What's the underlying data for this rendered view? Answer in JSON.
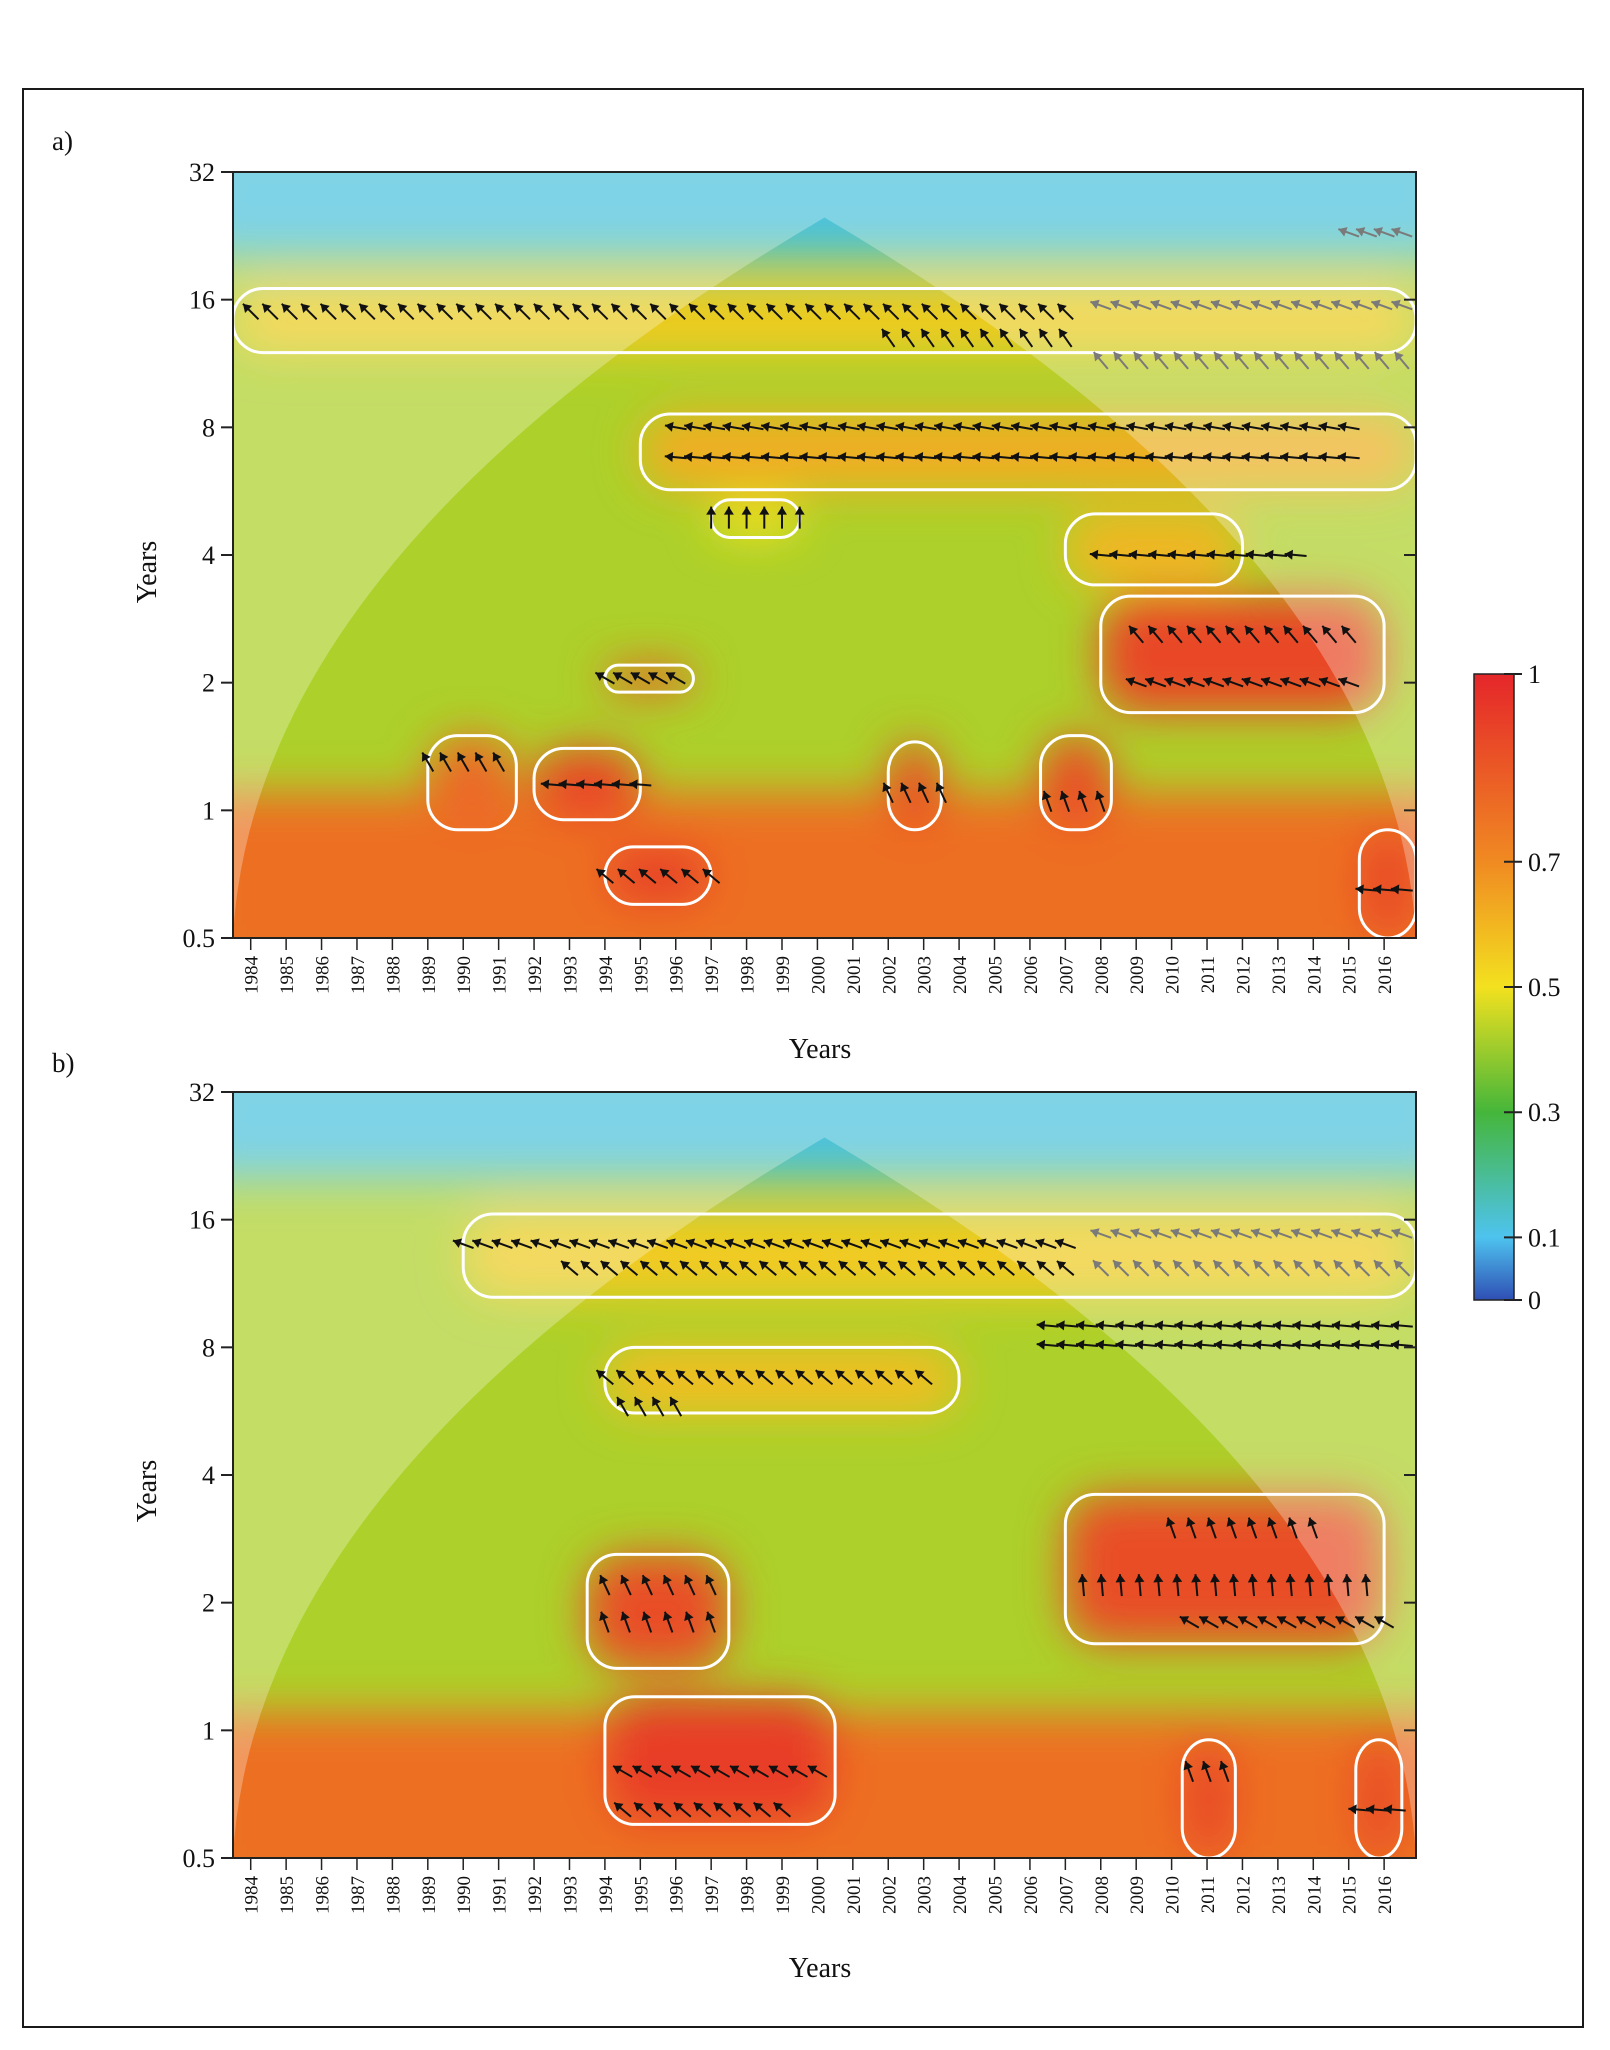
{
  "colors": {
    "scale_stops": [
      "#2f4fb4",
      "#4ec3ef",
      "#45b63a",
      "#f3e11f",
      "#f08a22",
      "#e5262a"
    ],
    "contour": "#ffffff",
    "arrow": "#111111",
    "arrow_outside_coi": "#7a7a7a"
  },
  "chart_data": [
    {
      "type": "heatmap",
      "panel_label": "a)",
      "title": "",
      "xlabel": "Years",
      "ylabel": "Years",
      "y_scale": "log2",
      "ylim": [
        0.5,
        32
      ],
      "y_ticks": [
        0.5,
        1,
        2,
        4,
        8,
        16,
        32
      ],
      "y_tick_labels": [
        "0.5",
        "1",
        "2",
        "4",
        "8",
        "16",
        "32"
      ],
      "xlim": [
        1983.5,
        2016.9
      ],
      "x_ticks": [
        1984,
        1985,
        1986,
        1987,
        1988,
        1989,
        1990,
        1991,
        1992,
        1993,
        1994,
        1995,
        1996,
        1997,
        1998,
        1999,
        2000,
        2001,
        2002,
        2003,
        2004,
        2005,
        2006,
        2007,
        2008,
        2009,
        2010,
        2011,
        2012,
        2013,
        2014,
        2015,
        2016
      ],
      "x_tick_labels": [
        "1984",
        "1985",
        "1986",
        "1987",
        "1988",
        "1989",
        "1990",
        "1991",
        "1992",
        "1993",
        "1994",
        "1995",
        "1996",
        "1997",
        "1998",
        "1999",
        "2000",
        "2001",
        "2002",
        "2003",
        "2004",
        "2005",
        "2006",
        "2007",
        "2008",
        "2009",
        "2010",
        "2011",
        "2012",
        "2013",
        "2014",
        "2015",
        "2016"
      ],
      "cone_of_influence": true,
      "significant_regions": [
        {
          "x": [
            1983.5,
            2016.9
          ],
          "period": [
            12,
            17
          ],
          "coherence": 0.55
        },
        {
          "x": [
            1995,
            2016.9
          ],
          "period": [
            5.7,
            8.6
          ],
          "coherence": 0.62
        },
        {
          "x": [
            2008,
            2016
          ],
          "period": [
            1.7,
            3.2
          ],
          "coherence": 0.9
        },
        {
          "x": [
            2007,
            2012
          ],
          "period": [
            3.4,
            5
          ],
          "coherence": 0.6
        },
        {
          "x": [
            1997,
            1999.5
          ],
          "period": [
            4.4,
            5.4
          ],
          "coherence": 0.5
        },
        {
          "x": [
            1994,
            1996.5
          ],
          "period": [
            1.9,
            2.2
          ],
          "coherence": 0.85
        },
        {
          "x": [
            1992,
            1995
          ],
          "period": [
            0.95,
            1.4
          ],
          "coherence": 0.9
        },
        {
          "x": [
            1989,
            1991.5
          ],
          "period": [
            0.9,
            1.5
          ],
          "coherence": 0.8
        },
        {
          "x": [
            1994,
            1997
          ],
          "period": [
            0.6,
            0.82
          ],
          "coherence": 0.92
        },
        {
          "x": [
            2002,
            2003.5
          ],
          "period": [
            0.9,
            1.45
          ],
          "coherence": 0.88
        },
        {
          "x": [
            2006.3,
            2008.3
          ],
          "period": [
            0.9,
            1.5
          ],
          "coherence": 0.88
        },
        {
          "x": [
            2015.3,
            2016.9
          ],
          "period": [
            0.5,
            0.9
          ],
          "coherence": 0.9
        }
      ],
      "phase_arrows": [
        {
          "x_range": [
            1984,
            2007
          ],
          "period": 15,
          "angle": 135
        },
        {
          "x_range": [
            2002,
            2007
          ],
          "period": 13,
          "angle": 125
        },
        {
          "x_range": [
            2008,
            2016.5
          ],
          "period": 15.5,
          "angle": 160
        },
        {
          "x_range": [
            2008,
            2016.5
          ],
          "period": 11.5,
          "angle": 130
        },
        {
          "x_range": [
            2015,
            2016.5
          ],
          "period": 23,
          "angle": 160
        },
        {
          "x_range": [
            1996,
            2015
          ],
          "period": 8,
          "angle": 170
        },
        {
          "x_range": [
            1996,
            2015
          ],
          "period": 6.8,
          "angle": 175
        },
        {
          "x_range": [
            1997,
            1999.5
          ],
          "period": 4.9,
          "angle": 90
        },
        {
          "x_range": [
            2008,
            2013.5
          ],
          "period": 4,
          "angle": 175
        },
        {
          "x_range": [
            2009,
            2015
          ],
          "period": 2.6,
          "angle": 130
        },
        {
          "x_range": [
            2009,
            2015
          ],
          "period": 2,
          "angle": 160
        },
        {
          "x_range": [
            1994,
            1996
          ],
          "period": 2.05,
          "angle": 150
        },
        {
          "x_range": [
            1992.5,
            1995
          ],
          "period": 1.15,
          "angle": 175
        },
        {
          "x_range": [
            1989,
            1991
          ],
          "period": 1.3,
          "angle": 120
        },
        {
          "x_range": [
            1994,
            1997
          ],
          "period": 0.7,
          "angle": 140
        },
        {
          "x_range": [
            2002,
            2003.5
          ],
          "period": 1.1,
          "angle": 115
        },
        {
          "x_range": [
            2006.5,
            2008
          ],
          "period": 1.05,
          "angle": 110
        },
        {
          "x_range": [
            2015.5,
            2016.5
          ],
          "period": 0.65,
          "angle": 175
        }
      ]
    },
    {
      "type": "heatmap",
      "panel_label": "b)",
      "title": "",
      "xlabel": "Years",
      "ylabel": "Years",
      "y_scale": "log2",
      "ylim": [
        0.5,
        32
      ],
      "y_ticks": [
        0.5,
        1,
        2,
        4,
        8,
        16,
        32
      ],
      "y_tick_labels": [
        "0.5",
        "1",
        "2",
        "4",
        "8",
        "16",
        "32"
      ],
      "xlim": [
        1983.5,
        2016.9
      ],
      "x_ticks": [
        1984,
        1985,
        1986,
        1987,
        1988,
        1989,
        1990,
        1991,
        1992,
        1993,
        1994,
        1995,
        1996,
        1997,
        1998,
        1999,
        2000,
        2001,
        2002,
        2003,
        2004,
        2005,
        2006,
        2007,
        2008,
        2009,
        2010,
        2011,
        2012,
        2013,
        2014,
        2015,
        2016
      ],
      "x_tick_labels": [
        "1984",
        "1985",
        "1986",
        "1987",
        "1988",
        "1989",
        "1990",
        "1991",
        "1992",
        "1993",
        "1994",
        "1995",
        "1996",
        "1997",
        "1998",
        "1999",
        "2000",
        "2001",
        "2002",
        "2003",
        "2004",
        "2005",
        "2006",
        "2007",
        "2008",
        "2009",
        "2010",
        "2011",
        "2012",
        "2013",
        "2014",
        "2015",
        "2016"
      ],
      "cone_of_influence": true,
      "significant_regions": [
        {
          "x": [
            1990,
            2016.9
          ],
          "period": [
            10.5,
            16.5
          ],
          "coherence": 0.55
        },
        {
          "x": [
            1994,
            2004
          ],
          "period": [
            5.6,
            8
          ],
          "coherence": 0.58
        },
        {
          "x": [
            2007,
            2016
          ],
          "period": [
            1.6,
            3.6
          ],
          "coherence": 0.88
        },
        {
          "x": [
            1993.5,
            1997.5
          ],
          "period": [
            1.4,
            2.6
          ],
          "coherence": 0.88
        },
        {
          "x": [
            1994,
            2000.5
          ],
          "period": [
            0.6,
            1.2
          ],
          "coherence": 0.93
        },
        {
          "x": [
            2010.3,
            2011.8
          ],
          "period": [
            0.5,
            0.95
          ],
          "coherence": 0.9
        },
        {
          "x": [
            2015.2,
            2016.5
          ],
          "period": [
            0.5,
            0.95
          ],
          "coherence": 0.9
        }
      ],
      "phase_arrows": [
        {
          "x_range": [
            1990,
            2007
          ],
          "period": 14,
          "angle": 160
        },
        {
          "x_range": [
            1993,
            2007
          ],
          "period": 12.3,
          "angle": 140
        },
        {
          "x_range": [
            2008,
            2016.5
          ],
          "period": 14.8,
          "angle": 160
        },
        {
          "x_range": [
            2008,
            2016.5
          ],
          "period": 12.3,
          "angle": 135
        },
        {
          "x_range": [
            2006.5,
            2016.5
          ],
          "period": 9,
          "angle": 175
        },
        {
          "x_range": [
            2006.5,
            2016.5
          ],
          "period": 8.1,
          "angle": 175
        },
        {
          "x_range": [
            1994,
            2003
          ],
          "period": 6.8,
          "angle": 140
        },
        {
          "x_range": [
            1994.5,
            1996
          ],
          "period": 5.8,
          "angle": 120
        },
        {
          "x_range": [
            2007.5,
            2015.5
          ],
          "period": 2.2,
          "angle": 95
        },
        {
          "x_range": [
            2010,
            2014
          ],
          "period": 3,
          "angle": 110
        },
        {
          "x_range": [
            2010.5,
            2016
          ],
          "period": 1.8,
          "angle": 150
        },
        {
          "x_range": [
            1994,
            1997
          ],
          "period": 2.2,
          "angle": 115
        },
        {
          "x_range": [
            1994,
            1997
          ],
          "period": 1.8,
          "angle": 110
        },
        {
          "x_range": [
            1994.5,
            2000
          ],
          "period": 0.8,
          "angle": 150
        },
        {
          "x_range": [
            1994.5,
            1999
          ],
          "period": 0.65,
          "angle": 140
        },
        {
          "x_range": [
            2010.5,
            2011.5
          ],
          "period": 0.8,
          "angle": 110
        },
        {
          "x_range": [
            2015.3,
            2016.3
          ],
          "period": 0.65,
          "angle": 175
        }
      ]
    }
  ],
  "colorbar": {
    "ticks": [
      0,
      0.1,
      0.3,
      0.5,
      0.7,
      1
    ],
    "tick_labels": [
      "0",
      "0.1",
      "0.3",
      "0.5",
      "0.7",
      "1"
    ]
  }
}
